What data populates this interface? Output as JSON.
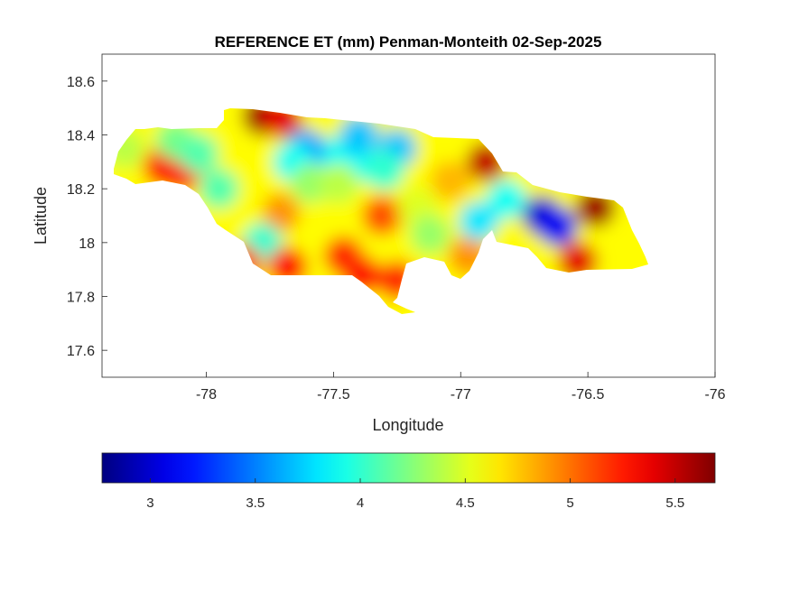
{
  "chart_data": {
    "type": "heatmap",
    "title": "REFERENCE ET (mm) Penman-Monteith 02-Sep-2025",
    "xlabel": "Longitude",
    "ylabel": "Latitude",
    "xlim": [
      -78.41,
      -76
    ],
    "ylim": [
      17.5,
      18.7
    ],
    "xticks": [
      -78,
      -77.5,
      -77,
      -76.5,
      -76
    ],
    "xtick_labels": [
      "-78",
      "-77.5",
      "-77",
      "-76.5",
      "-76"
    ],
    "yticks": [
      17.6,
      17.8,
      18,
      18.2,
      18.4,
      18.6
    ],
    "ytick_labels": [
      "17.6",
      "17.8",
      "18",
      "18.2",
      "18.4",
      "18.6"
    ],
    "grid": false,
    "colormap": "jet",
    "colorbar": {
      "location": "bottom",
      "clim": [
        2.77,
        5.69
      ],
      "ticks": [
        3,
        3.5,
        4,
        4.5,
        5,
        5.5
      ],
      "tick_labels": [
        "3",
        "3.5",
        "4",
        "4.5",
        "5",
        "5.5"
      ]
    },
    "base_value": 4.6,
    "samples": [
      {
        "lon": -78.17,
        "lat": 18.28,
        "value": 5.3
      },
      {
        "lon": -78.1,
        "lat": 18.26,
        "value": 5.3
      },
      {
        "lon": -77.78,
        "lat": 18.47,
        "value": 5.6
      },
      {
        "lon": -77.7,
        "lat": 18.46,
        "value": 5.4
      },
      {
        "lon": -77.5,
        "lat": 18.32,
        "value": 3.9
      },
      {
        "lon": -77.61,
        "lat": 18.35,
        "value": 3.6
      },
      {
        "lon": -77.66,
        "lat": 18.3,
        "value": 3.9
      },
      {
        "lon": -77.39,
        "lat": 18.3,
        "value": 3.9
      },
      {
        "lon": -77.4,
        "lat": 18.4,
        "value": 3.7
      },
      {
        "lon": -77.59,
        "lat": 18.22,
        "value": 4.3
      },
      {
        "lon": -77.48,
        "lat": 18.22,
        "value": 4.4
      },
      {
        "lon": -77.25,
        "lat": 18.35,
        "value": 3.7
      },
      {
        "lon": -77.3,
        "lat": 18.27,
        "value": 4.0
      },
      {
        "lon": -77.39,
        "lat": 17.88,
        "value": 5.3
      },
      {
        "lon": -77.46,
        "lat": 17.95,
        "value": 5.2
      },
      {
        "lon": -77.71,
        "lat": 18.11,
        "value": 4.9
      },
      {
        "lon": -77.85,
        "lat": 18.13,
        "value": 4.6
      },
      {
        "lon": -77.78,
        "lat": 18.0,
        "value": 4.0
      },
      {
        "lon": -77.68,
        "lat": 17.91,
        "value": 5.3
      },
      {
        "lon": -77.86,
        "lat": 17.92,
        "value": 5.1
      },
      {
        "lon": -77.31,
        "lat": 18.1,
        "value": 5.1
      },
      {
        "lon": -77.17,
        "lat": 18.13,
        "value": 4.5
      },
      {
        "lon": -77.12,
        "lat": 18.03,
        "value": 4.3
      },
      {
        "lon": -76.9,
        "lat": 18.3,
        "value": 5.5
      },
      {
        "lon": -77.04,
        "lat": 18.23,
        "value": 4.8
      },
      {
        "lon": -76.97,
        "lat": 17.95,
        "value": 4.9
      },
      {
        "lon": -76.68,
        "lat": 18.1,
        "value": 3.0
      },
      {
        "lon": -76.62,
        "lat": 18.06,
        "value": 3.1
      },
      {
        "lon": -76.82,
        "lat": 18.16,
        "value": 3.9
      },
      {
        "lon": -76.93,
        "lat": 18.08,
        "value": 3.8
      },
      {
        "lon": -76.47,
        "lat": 18.13,
        "value": 5.6
      },
      {
        "lon": -76.54,
        "lat": 17.93,
        "value": 5.4
      },
      {
        "lon": -76.36,
        "lat": 18.01,
        "value": 4.6
      },
      {
        "lon": -78.32,
        "lat": 18.35,
        "value": 4.4
      },
      {
        "lon": -78.12,
        "lat": 18.38,
        "value": 4.2
      },
      {
        "lon": -78.03,
        "lat": 18.33,
        "value": 4.1
      },
      {
        "lon": -77.95,
        "lat": 18.2,
        "value": 4.1
      },
      {
        "lon": -77.25,
        "lat": 17.86,
        "value": 5.2
      }
    ]
  }
}
